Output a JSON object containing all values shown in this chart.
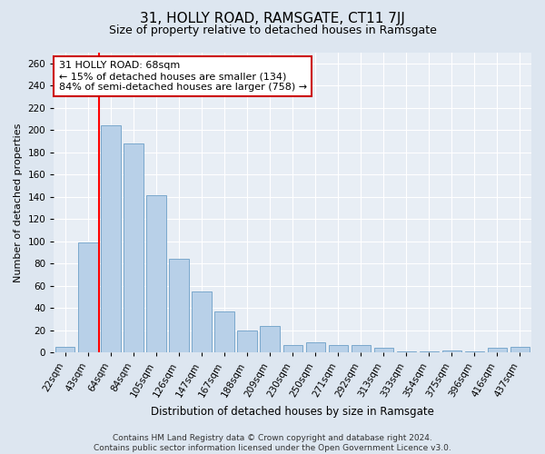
{
  "title": "31, HOLLY ROAD, RAMSGATE, CT11 7JJ",
  "subtitle": "Size of property relative to detached houses in Ramsgate",
  "xlabel": "Distribution of detached houses by size in Ramsgate",
  "ylabel": "Number of detached properties",
  "categories": [
    "22sqm",
    "43sqm",
    "64sqm",
    "84sqm",
    "105sqm",
    "126sqm",
    "147sqm",
    "167sqm",
    "188sqm",
    "209sqm",
    "230sqm",
    "250sqm",
    "271sqm",
    "292sqm",
    "313sqm",
    "333sqm",
    "354sqm",
    "375sqm",
    "396sqm",
    "416sqm",
    "437sqm"
  ],
  "values": [
    5,
    99,
    204,
    188,
    141,
    84,
    55,
    37,
    20,
    24,
    7,
    9,
    7,
    7,
    4,
    1,
    1,
    2,
    1,
    4,
    5
  ],
  "bar_color": "#b8d0e8",
  "bar_edge_color": "#7aa8cc",
  "annotation_text": "31 HOLLY ROAD: 68sqm\n← 15% of detached houses are smaller (134)\n84% of semi-detached houses are larger (758) →",
  "annotation_box_color": "#ffffff",
  "annotation_box_edge": "#cc0000",
  "red_line_index": 1.5,
  "ylim": [
    0,
    270
  ],
  "yticks": [
    0,
    20,
    40,
    60,
    80,
    100,
    120,
    140,
    160,
    180,
    200,
    220,
    240,
    260
  ],
  "bg_color": "#dde6f0",
  "plot_bg_color": "#e8eef5",
  "grid_color": "#ffffff",
  "footer_line1": "Contains HM Land Registry data © Crown copyright and database right 2024.",
  "footer_line2": "Contains public sector information licensed under the Open Government Licence v3.0.",
  "title_fontsize": 11,
  "subtitle_fontsize": 9,
  "ylabel_fontsize": 8,
  "xlabel_fontsize": 8.5,
  "tick_fontsize": 7.5,
  "annotation_fontsize": 8,
  "footer_fontsize": 6.5
}
